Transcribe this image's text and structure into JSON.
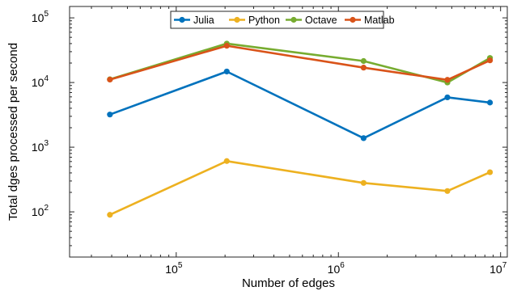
{
  "chart_data": {
    "type": "line",
    "title": "",
    "xlabel": "Number of edges",
    "ylabel": "Total dges processed per second",
    "xscale": "log",
    "yscale": "log",
    "xlim": [
      22000,
      11000000
    ],
    "ylim": [
      20,
      150000
    ],
    "xticks": [
      {
        "value": 100000,
        "base": "10",
        "exp": "5"
      },
      {
        "value": 1000000,
        "base": "10",
        "exp": "6"
      },
      {
        "value": 10000000,
        "base": "10",
        "exp": "7"
      }
    ],
    "yticks": [
      {
        "value": 100,
        "base": "10",
        "exp": "2"
      },
      {
        "value": 1000,
        "base": "10",
        "exp": "3"
      },
      {
        "value": 10000,
        "base": "10",
        "exp": "4"
      },
      {
        "value": 100000,
        "base": "10",
        "exp": "5"
      }
    ],
    "grid": false,
    "legend_position": "top",
    "x": [
      39000,
      205000,
      1430000,
      4700000,
      8600000
    ],
    "series": [
      {
        "name": "Julia",
        "color": "#0072BD",
        "values": [
          3200,
          14800,
          1380,
          5900,
          4900
        ]
      },
      {
        "name": "Python",
        "color": "#EDB120",
        "values": [
          90,
          610,
          280,
          210,
          410
        ]
      },
      {
        "name": "Octave",
        "color": "#77AC30",
        "values": [
          11200,
          40000,
          21500,
          10000,
          24000
        ]
      },
      {
        "name": "Matlab",
        "color": "#D95319",
        "values": [
          11100,
          37000,
          17000,
          11000,
          22000
        ]
      }
    ]
  }
}
